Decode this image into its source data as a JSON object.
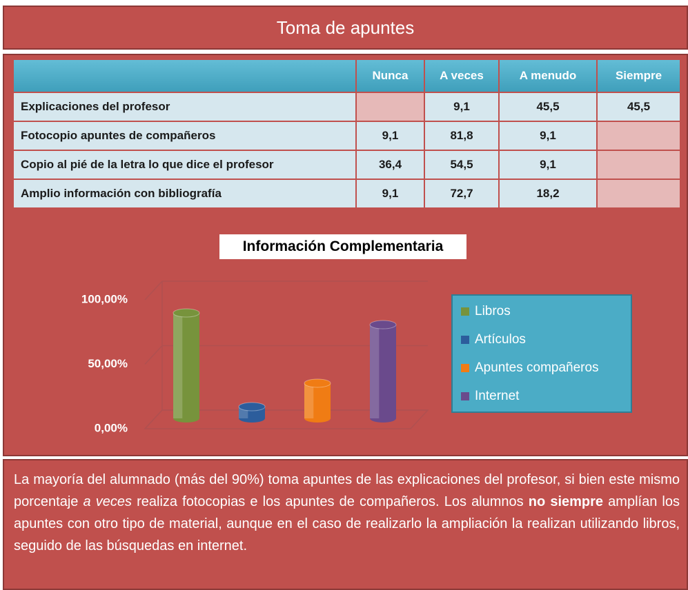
{
  "header": {
    "title": "Toma de apuntes"
  },
  "table": {
    "columns": [
      null,
      "Nunca",
      "A veces",
      "A menudo",
      "Siempre"
    ],
    "rows": [
      [
        "Explicaciones del profesor",
        null,
        "9,1",
        "45,5",
        "45,5"
      ],
      [
        "Fotocopio apuntes de compañeros",
        "9,1",
        "81,8",
        "9,1",
        null
      ],
      [
        "Copio al pié de la letra lo que dice el profesor",
        "36,4",
        "54,5",
        "9,1",
        null
      ],
      [
        "Amplio información con bibliografía",
        "9,1",
        "72,7",
        "18,2",
        null
      ]
    ]
  },
  "chart_data": {
    "type": "bar",
    "title": "Información Complementaria",
    "series": [
      {
        "name": "Libros",
        "color": "#77933c",
        "values": [
          81.8
        ]
      },
      {
        "name": "Artículos",
        "color": "#2c5d9c",
        "values": [
          9.1
        ]
      },
      {
        "name": "Apuntes compañeros",
        "color": "#f07c14",
        "values": [
          27.3
        ]
      },
      {
        "name": "Internet",
        "color": "#6a4a8c",
        "values": [
          72.7
        ]
      }
    ],
    "ylim": [
      0,
      100
    ],
    "yticks": [
      {
        "value": 0,
        "label": "0,00%"
      },
      {
        "value": 50,
        "label": "50,00%"
      },
      {
        "value": 100,
        "label": "100,00%"
      }
    ],
    "grid": true,
    "legend": "right"
  },
  "text": {
    "runs": [
      "La mayoría del alumnado (más del 90%) toma apuntes de las explicaciones del profesor, si bien  este mismo porcentaje ",
      "a veces",
      " realiza fotocopias e los apuntes de compañeros.  Los alumnos ",
      "no siempre",
      " amplían los apuntes con otro tipo de material, aunque en el caso de realizarlo la ampliación la realizan utilizando libros, seguido de las búsquedas en internet."
    ]
  }
}
